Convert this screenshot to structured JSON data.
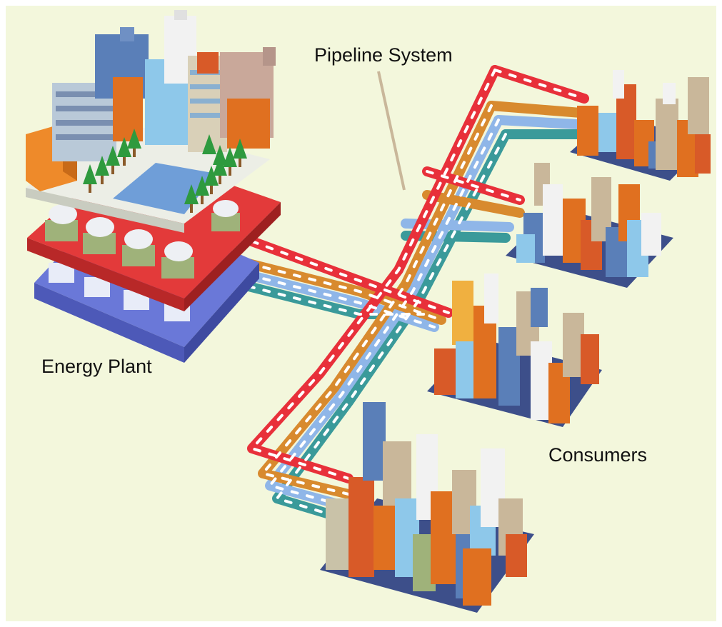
{
  "labels": {
    "pipeline_system": "Pipeline System",
    "energy_plant": "Energy Plant",
    "consumers": "Consumers"
  },
  "colors": {
    "background": "#f3f7dc",
    "pipe_red": "#e8303a",
    "pipe_orange": "#d88a2e",
    "pipe_blue": "#8fb6e8",
    "pipe_teal": "#3a9a9a",
    "plant_red_slab": "#e33a3a",
    "plant_blue_slab": "#6a78d8",
    "tree_green": "#2e9a3e",
    "block_orange": "#e07020",
    "block_blue": "#5a7fb8",
    "block_tan": "#c9b79a",
    "block_white": "#f2f2f2"
  }
}
